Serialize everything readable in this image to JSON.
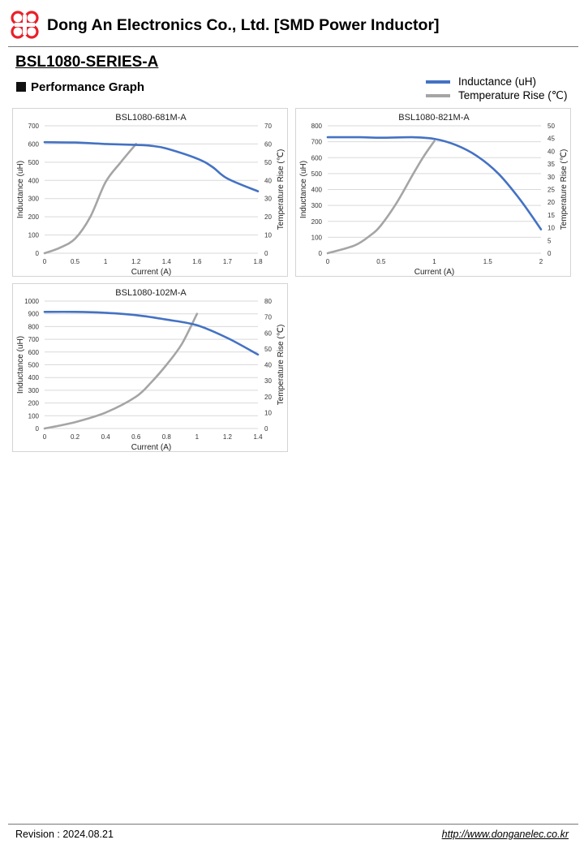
{
  "header": {
    "company": "Dong An Electronics Co., Ltd. [SMD Power Inductor]",
    "logo_icon": "dongan-logo-icon",
    "logo_color": "#e8202a"
  },
  "series_title": "BSL1080-SERIES-A",
  "section_title": "Performance Graph",
  "legend": [
    {
      "label": "Inductance (uH)",
      "color": "#4472c4"
    },
    {
      "label": "Temperature Rise (℃)",
      "color": "#a5a5a5"
    }
  ],
  "chart_data": [
    {
      "type": "line",
      "title": "BSL1080-681M-A",
      "xlabel": "Current (A)",
      "ylabel": "Inductance (uH)",
      "y2label": "Temperature Rise (℃)",
      "x_ticks": [
        "0",
        "0.5",
        "1",
        "1.2",
        "1.4",
        "1.6",
        "1.7",
        "1.8"
      ],
      "ylim": [
        0,
        700
      ],
      "y_ticks": [
        0,
        100,
        200,
        300,
        400,
        500,
        600,
        700
      ],
      "y2lim": [
        0,
        70
      ],
      "y2_ticks": [
        0,
        10,
        20,
        30,
        40,
        50,
        60,
        70
      ],
      "grid": true,
      "series": [
        {
          "axis": "left",
          "color": "#4472c4",
          "values": [
            [
              0,
              610
            ],
            [
              1,
              608
            ],
            [
              2,
              600
            ],
            [
              3,
              595
            ],
            [
              3.5,
              590
            ],
            [
              4,
              575
            ],
            [
              5,
              520
            ],
            [
              5.5,
              475
            ],
            [
              6,
              410
            ],
            [
              7,
              340
            ]
          ]
        },
        {
          "axis": "right",
          "color": "#a5a5a5",
          "values": [
            [
              0,
              0
            ],
            [
              0.5,
              3
            ],
            [
              1,
              8
            ],
            [
              1.5,
              20
            ],
            [
              2,
              39
            ],
            [
              2.5,
              50
            ],
            [
              3,
              60
            ]
          ]
        }
      ]
    },
    {
      "type": "line",
      "title": "BSL1080-821M-A",
      "xlabel": "Current (A)",
      "ylabel": "Inductance (uH)",
      "y2label": "Temperature Rise (℃)",
      "x_ticks": [
        "0",
        "0.5",
        "1",
        "1.5",
        "2"
      ],
      "ylim": [
        0,
        800
      ],
      "y_ticks": [
        0,
        100,
        200,
        300,
        400,
        500,
        600,
        700,
        800
      ],
      "y2lim": [
        0,
        50
      ],
      "y2_ticks": [
        0,
        5,
        10,
        15,
        20,
        25,
        30,
        35,
        40,
        45,
        50
      ],
      "grid": true,
      "series": [
        {
          "axis": "left",
          "color": "#4472c4",
          "values": [
            [
              0,
              728
            ],
            [
              0.3,
              728
            ],
            [
              0.5,
              725
            ],
            [
              0.8,
              728
            ],
            [
              1.0,
              718
            ],
            [
              1.2,
              680
            ],
            [
              1.4,
              610
            ],
            [
              1.6,
              500
            ],
            [
              1.8,
              340
            ],
            [
              2.0,
              150
            ]
          ]
        },
        {
          "axis": "right",
          "color": "#a5a5a5",
          "values": [
            [
              0,
              0
            ],
            [
              0.25,
              3
            ],
            [
              0.4,
              7
            ],
            [
              0.5,
              11
            ],
            [
              0.65,
              20
            ],
            [
              0.8,
              31
            ],
            [
              0.9,
              38
            ],
            [
              1.0,
              44
            ]
          ]
        }
      ]
    },
    {
      "type": "line",
      "title": "BSL1080-102M-A",
      "xlabel": "Current (A)",
      "ylabel": "Inductance (uH)",
      "y2label": "Temperature Rise (℃)",
      "x_ticks": [
        "0",
        "0.2",
        "0.4",
        "0.6",
        "0.8",
        "1",
        "1.2",
        "1.4"
      ],
      "ylim": [
        0,
        1000
      ],
      "y_ticks": [
        0,
        100,
        200,
        300,
        400,
        500,
        600,
        700,
        800,
        900,
        1000
      ],
      "y2lim": [
        0,
        80
      ],
      "y2_ticks": [
        0,
        10,
        20,
        30,
        40,
        50,
        60,
        70,
        80
      ],
      "grid": true,
      "series": [
        {
          "axis": "left",
          "color": "#4472c4",
          "values": [
            [
              0,
              915
            ],
            [
              0.2,
              915
            ],
            [
              0.4,
              908
            ],
            [
              0.6,
              890
            ],
            [
              0.8,
              855
            ],
            [
              1.0,
              810
            ],
            [
              1.2,
              710
            ],
            [
              1.4,
              580
            ]
          ]
        },
        {
          "axis": "right",
          "color": "#a5a5a5",
          "values": [
            [
              0,
              0
            ],
            [
              0.2,
              4
            ],
            [
              0.4,
              10
            ],
            [
              0.6,
              20
            ],
            [
              0.7,
              29
            ],
            [
              0.8,
              40
            ],
            [
              0.9,
              53
            ],
            [
              1.0,
              72
            ]
          ]
        }
      ]
    }
  ],
  "footer": {
    "revision": "Revision : 2024.08.21",
    "url": "http://www.donganelec.co.kr"
  }
}
